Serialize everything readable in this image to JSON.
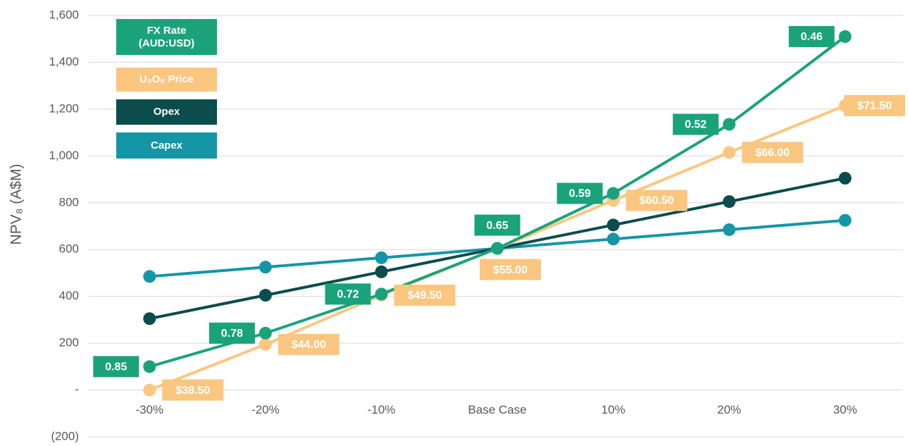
{
  "chart_data": {
    "type": "line",
    "y_label": "NPV₈ (A$M)",
    "categories": [
      "-30%",
      "-20%",
      "-10%",
      "Base Case",
      "10%",
      "20%",
      "30%"
    ],
    "ylim": [
      -200,
      1600
    ],
    "yticks": [
      {
        "value": -200,
        "label": "(200)"
      },
      {
        "value": 0,
        "label": "-"
      },
      200,
      400,
      600,
      800,
      {
        "value": 1000,
        "label": "1,000"
      },
      {
        "value": 1200,
        "label": "1,200"
      },
      {
        "value": 1400,
        "label": "1,400"
      },
      {
        "value": 1600,
        "label": "1,600"
      }
    ],
    "grid": true,
    "legend": "upper left",
    "series": [
      {
        "name": "FX Rate (AUD:USD)",
        "color": "#1aa37a",
        "values": [
          100,
          243,
          410,
          605,
          840,
          1135,
          1510
        ],
        "labels": [
          "0.85",
          "0.78",
          "0.72",
          "0.65",
          "0.59",
          "0.52",
          "0.46"
        ]
      },
      {
        "name": "U₃O₈ Price",
        "color": "#fbc680",
        "values": [
          0,
          195,
          405,
          605,
          810,
          1015,
          1215
        ],
        "labels": [
          "$38.50",
          "$44.00",
          "$49.50",
          "$55.00",
          "$60.50",
          "$66.00",
          "$71.50"
        ]
      },
      {
        "name": "Opex",
        "color": "#0b4c4c",
        "values": [
          305,
          405,
          505,
          605,
          705,
          805,
          905
        ]
      },
      {
        "name": "Capex",
        "color": "#1596a6",
        "values": [
          485,
          525,
          565,
          605,
          645,
          685,
          725
        ]
      }
    ]
  }
}
